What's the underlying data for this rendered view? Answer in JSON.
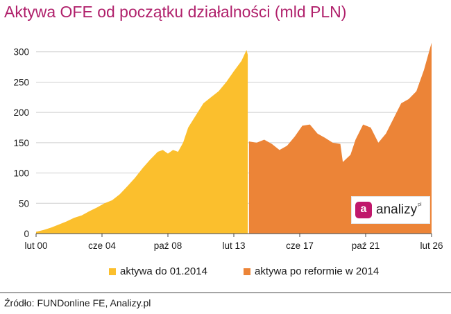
{
  "chart_data": {
    "type": "area",
    "title": "Aktywa OFE od początku działalności (mld PLN)",
    "ylim": [
      0,
      310
    ],
    "yticks": [
      0,
      50,
      100,
      150,
      200,
      250,
      300
    ],
    "xticks": [
      "lut 00",
      "cze 04",
      "paź 08",
      "lut 13",
      "cze 17",
      "paź 21",
      "lut 26"
    ],
    "grid": true,
    "legend_position": "bottom",
    "series": [
      {
        "name": "aktywa do 01.2014",
        "color": "#fbbf2d",
        "points": [
          [
            "2000-02",
            3
          ],
          [
            "2000-08",
            6
          ],
          [
            "2001-02",
            10
          ],
          [
            "2001-08",
            15
          ],
          [
            "2002-02",
            20
          ],
          [
            "2002-08",
            26
          ],
          [
            "2003-02",
            30
          ],
          [
            "2003-08",
            37
          ],
          [
            "2004-02",
            43
          ],
          [
            "2004-08",
            50
          ],
          [
            "2005-02",
            55
          ],
          [
            "2005-08",
            65
          ],
          [
            "2006-02",
            78
          ],
          [
            "2006-08",
            92
          ],
          [
            "2007-02",
            108
          ],
          [
            "2007-08",
            122
          ],
          [
            "2008-02",
            135
          ],
          [
            "2008-06",
            138
          ],
          [
            "2008-10",
            132
          ],
          [
            "2009-02",
            138
          ],
          [
            "2009-06",
            135
          ],
          [
            "2009-10",
            150
          ],
          [
            "2010-02",
            175
          ],
          [
            "2010-08",
            195
          ],
          [
            "2011-02",
            215
          ],
          [
            "2011-08",
            225
          ],
          [
            "2012-02",
            235
          ],
          [
            "2012-08",
            250
          ],
          [
            "2013-02",
            268
          ],
          [
            "2013-08",
            285
          ],
          [
            "2013-12",
            303
          ],
          [
            "2014-01",
            295
          ]
        ]
      },
      {
        "name": "aktywa po reformie w 2014",
        "color": "#ec8437",
        "points": [
          [
            "2014-02",
            152
          ],
          [
            "2014-08",
            150
          ],
          [
            "2015-02",
            155
          ],
          [
            "2015-08",
            148
          ],
          [
            "2016-02",
            138
          ],
          [
            "2016-08",
            145
          ],
          [
            "2017-02",
            160
          ],
          [
            "2017-08",
            178
          ],
          [
            "2018-02",
            180
          ],
          [
            "2018-08",
            165
          ],
          [
            "2019-02",
            158
          ],
          [
            "2019-08",
            150
          ],
          [
            "2020-02",
            148
          ],
          [
            "2020-04",
            118
          ],
          [
            "2020-10",
            130
          ],
          [
            "2021-02",
            155
          ],
          [
            "2021-08",
            180
          ],
          [
            "2022-02",
            175
          ],
          [
            "2022-08",
            150
          ],
          [
            "2023-02",
            165
          ],
          [
            "2023-08",
            190
          ],
          [
            "2024-02",
            215
          ],
          [
            "2024-08",
            222
          ],
          [
            "2025-02",
            235
          ],
          [
            "2025-08",
            270
          ],
          [
            "2026-02",
            315
          ]
        ]
      }
    ],
    "source": "Źródło: FUNDonline FE, Analizy.pl"
  },
  "logo": {
    "mark": "a",
    "text": "analizy",
    "sup": "pl"
  }
}
